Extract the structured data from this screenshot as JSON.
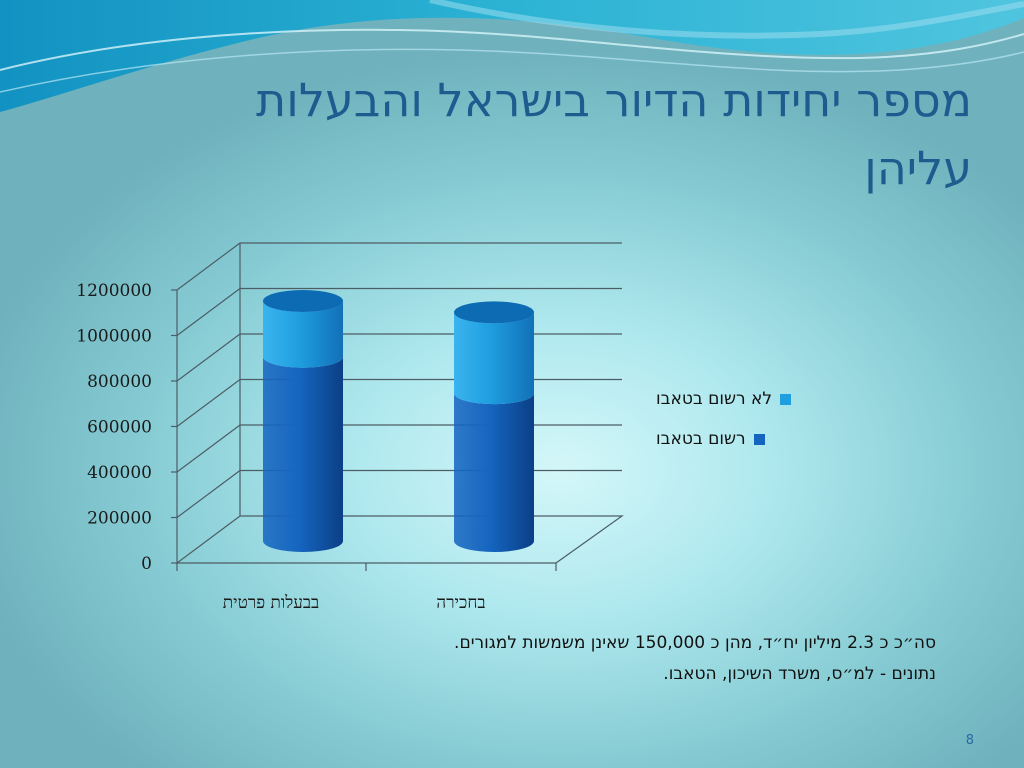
{
  "slide": {
    "title_line1": "מספר יחידות הדיור בישראל והבעלות",
    "title_line2": "עליהן",
    "footnote_line1": "סה״כ כ 2.3 מיליון יח״ד, מהן כ 150,000 שאינן משמשות למגורים.",
    "footnote_line2": "נתונים - למ״ס, משרד השיכון, הטאבו.",
    "page_number": "8"
  },
  "colors": {
    "registered": "#1565c0",
    "not_registered": "#1f9ee0",
    "title": "#1e5b8e"
  },
  "chart_data": {
    "type": "bar",
    "stacked": true,
    "three_d": true,
    "categories": [
      "בבעלות פרטית",
      "בחכירה"
    ],
    "series": [
      {
        "name": "רשום בטאבו",
        "values": [
          810000,
          650000
        ]
      },
      {
        "name": "לא רשום בטאבו",
        "values": [
          245000,
          355000
        ]
      }
    ],
    "ylim": [
      0,
      1200000
    ],
    "yticks": [
      "1200000",
      "1000000",
      "800000",
      "600000",
      "400000",
      "200000",
      "0"
    ],
    "grid": true,
    "legend_position": "right",
    "title": "",
    "xlabel": "",
    "ylabel": ""
  }
}
